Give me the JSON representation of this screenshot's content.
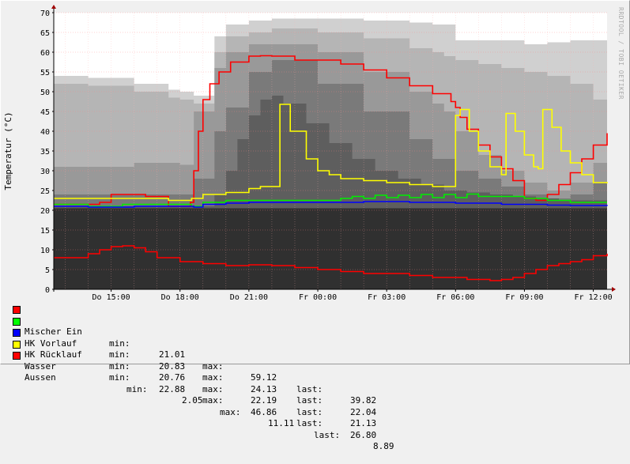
{
  "watermark": "RRDTOOL / TOBI OETIKER",
  "chart_data": {
    "type": "line",
    "ylabel": "Temperatur (°C)",
    "xlabel": "",
    "ylim": [
      0,
      70
    ],
    "yticks": [
      0,
      5,
      10,
      15,
      20,
      25,
      30,
      35,
      40,
      45,
      50,
      55,
      60,
      65,
      70
    ],
    "xlim": [
      12.5,
      36.6
    ],
    "xticks": [
      {
        "x": 15,
        "label": "Do 15:00"
      },
      {
        "x": 18,
        "label": "Do 18:00"
      },
      {
        "x": 21,
        "label": "Do 21:00"
      },
      {
        "x": 24,
        "label": "Fr 00:00"
      },
      {
        "x": 27,
        "label": "Fr 03:00"
      },
      {
        "x": 30,
        "label": "Fr 06:00"
      },
      {
        "x": 33,
        "label": "Fr 09:00"
      },
      {
        "x": 36,
        "label": "Fr 12:00"
      }
    ],
    "grid": true,
    "series": [
      {
        "name": "Mischer Ein",
        "color": "#ff0000",
        "x": [
          12.5,
          13.5,
          14.5,
          15.0,
          16.2,
          16.5,
          17.5,
          17.8,
          18.3,
          18.45,
          18.6,
          18.8,
          19.0,
          19.3,
          19.7,
          20.2,
          21.0,
          21.5,
          22.0,
          23.0,
          24.0,
          25.0,
          26.0,
          27.0,
          28.0,
          29.0,
          29.8,
          30.0,
          30.2,
          30.5,
          31.0,
          31.5,
          32.0,
          32.5,
          33.0,
          33.5,
          34.0,
          34.5,
          35.0,
          35.5,
          36.0,
          36.6
        ],
        "y": [
          21.5,
          21.5,
          22.0,
          24.0,
          24.0,
          23.5,
          21.0,
          21.0,
          21.0,
          22.0,
          30.0,
          40.0,
          48.0,
          52.0,
          55.0,
          57.5,
          59.0,
          59.1,
          59.0,
          58.0,
          58.0,
          57.0,
          55.5,
          53.5,
          51.5,
          49.5,
          47.5,
          46.0,
          43.5,
          40.5,
          36.5,
          33.5,
          30.5,
          27.5,
          23.0,
          22.5,
          24.0,
          26.5,
          29.5,
          33.0,
          36.5,
          39.5
        ]
      },
      {
        "name": "HK Vorlauf",
        "color": "#00ee00",
        "x": [
          12.5,
          14.0,
          15.5,
          17.0,
          18.5,
          19.0,
          20.0,
          21.0,
          22.0,
          23.0,
          24.0,
          25.0,
          25.5,
          26.0,
          26.5,
          27.0,
          27.5,
          28.0,
          28.5,
          29.0,
          29.5,
          30.0,
          30.5,
          31.0,
          32.0,
          33.0,
          34.0,
          35.0,
          36.6
        ],
        "y": [
          21.5,
          21.0,
          21.5,
          21.5,
          21.0,
          22.0,
          22.5,
          22.5,
          22.5,
          22.5,
          22.5,
          23.0,
          23.5,
          23.0,
          23.8,
          23.2,
          23.8,
          23.2,
          24.0,
          23.2,
          24.0,
          23.2,
          24.1,
          23.5,
          23.5,
          23.0,
          22.5,
          22.0,
          22.0
        ]
      },
      {
        "name": "HK Rücklauf",
        "color": "#0000ff",
        "x": [
          12.5,
          14.0,
          16.0,
          18.0,
          18.6,
          19.0,
          20.0,
          21.0,
          22.0,
          23.0,
          24.0,
          26.0,
          28.0,
          30.0,
          31.0,
          32.0,
          33.0,
          34.0,
          35.0,
          36.6
        ],
        "y": [
          21.0,
          20.8,
          21.0,
          21.0,
          20.8,
          21.5,
          21.8,
          22.0,
          22.0,
          22.0,
          22.0,
          22.2,
          22.0,
          21.8,
          21.8,
          21.5,
          21.5,
          21.3,
          21.2,
          21.1
        ]
      },
      {
        "name": "Wasser",
        "color": "#ffff00",
        "x": [
          12.5,
          15.0,
          17.5,
          18.5,
          19.0,
          20.0,
          21.0,
          21.5,
          22.0,
          22.3,
          22.35,
          22.8,
          23.5,
          24.0,
          24.5,
          25.0,
          26.0,
          27.0,
          28.0,
          29.0,
          29.9,
          30.0,
          30.2,
          30.6,
          31.0,
          31.5,
          32.0,
          32.1,
          32.2,
          32.6,
          33.0,
          33.4,
          33.6,
          33.7,
          33.8,
          34.2,
          34.6,
          35.0,
          35.5,
          36.0,
          36.6
        ],
        "y": [
          23.0,
          23.0,
          22.5,
          23.0,
          24.0,
          24.5,
          25.5,
          26.0,
          26.0,
          26.0,
          46.8,
          40.0,
          33.0,
          30.0,
          29.0,
          28.0,
          27.5,
          27.0,
          26.5,
          26.0,
          26.0,
          44.0,
          45.5,
          40.0,
          35.0,
          31.0,
          29.0,
          29.0,
          44.5,
          40.0,
          34.0,
          31.0,
          30.5,
          30.5,
          45.5,
          41.0,
          35.0,
          32.0,
          29.0,
          27.0,
          26.8
        ]
      },
      {
        "name": "Aussen",
        "color": "#ff0000",
        "x": [
          12.5,
          13.0,
          14.0,
          14.5,
          15.0,
          15.5,
          16.0,
          16.5,
          17.0,
          18.0,
          19.0,
          20.0,
          21.0,
          22.0,
          23.0,
          24.0,
          25.0,
          26.0,
          27.0,
          28.0,
          29.0,
          30.0,
          30.5,
          31.0,
          31.5,
          32.0,
          32.5,
          33.0,
          33.5,
          34.0,
          34.5,
          35.0,
          35.5,
          36.0,
          36.6
        ],
        "y": [
          8.0,
          8.0,
          9.0,
          10.0,
          10.8,
          11.0,
          10.5,
          9.5,
          8.0,
          7.0,
          6.5,
          6.0,
          6.2,
          6.0,
          5.5,
          5.0,
          4.5,
          4.0,
          4.0,
          3.5,
          3.0,
          3.0,
          2.5,
          2.5,
          2.2,
          2.5,
          3.0,
          4.0,
          5.0,
          6.0,
          6.5,
          7.0,
          7.5,
          8.5,
          9.0
        ]
      }
    ],
    "bands": [
      {
        "color": "#d0d0d0",
        "x": [
          12.5,
          14.0,
          16.0,
          17.5,
          18.0,
          18.6,
          19.5,
          20.0,
          21.0,
          22.0,
          24.0,
          26.0,
          28.0,
          29.0,
          29.5,
          30.0,
          31.0,
          32.0,
          33.0,
          34.0,
          35.0,
          36.0,
          36.6
        ],
        "y": [
          54.0,
          53.5,
          52.0,
          50.5,
          50.0,
          49.0,
          64.0,
          67.0,
          68.0,
          68.5,
          68.5,
          68.0,
          67.5,
          67.0,
          67.0,
          63.0,
          63.0,
          63.0,
          62.0,
          62.5,
          63.0,
          63.0,
          65.0
        ]
      },
      {
        "color": "#b5b5b5",
        "x": [
          12.5,
          14.0,
          16.0,
          17.5,
          18.0,
          18.6,
          19.5,
          20.0,
          21.0,
          22.0,
          24.0,
          26.0,
          28.0,
          29.0,
          29.5,
          30.0,
          31.0,
          32.0,
          33.0,
          34.0,
          35.0,
          36.0,
          36.6
        ],
        "y": [
          52.0,
          51.5,
          50.0,
          48.5,
          48.0,
          47.0,
          60.0,
          64.0,
          65.0,
          66.0,
          65.0,
          63.5,
          61.0,
          60.0,
          59.0,
          58.0,
          57.0,
          56.0,
          55.0,
          54.0,
          52.0,
          48.0,
          45.0
        ]
      },
      {
        "color": "#999999",
        "x": [
          12.5,
          14.0,
          16.0,
          17.5,
          18.0,
          18.6,
          19.5,
          20.0,
          21.0,
          22.0,
          24.0,
          26.0,
          28.0,
          29.0,
          29.5,
          30.0,
          31.0,
          32.0,
          33.0,
          34.0,
          35.0,
          36.0,
          36.6
        ],
        "y": [
          31.0,
          31.0,
          32.0,
          32.0,
          31.5,
          45.0,
          56.0,
          60.0,
          62.0,
          62.0,
          60.0,
          55.0,
          50.0,
          47.0,
          45.0,
          40.0,
          34.0,
          30.0,
          27.0,
          25.0,
          27.0,
          32.0,
          37.0
        ]
      },
      {
        "color": "#7a7a7a",
        "x": [
          12.5,
          16.0,
          18.0,
          18.6,
          19.5,
          20.0,
          21.0,
          22.0,
          24.0,
          26.0,
          28.0,
          29.0,
          30.0,
          31.0,
          32.0,
          33.0,
          34.0,
          35.0,
          36.0,
          36.6
        ],
        "y": [
          24.0,
          24.0,
          24.0,
          28.0,
          40.0,
          46.0,
          55.0,
          58.0,
          52.0,
          45.0,
          38.0,
          33.0,
          30.0,
          28.0,
          26.0,
          24.0,
          23.0,
          24.0,
          27.0,
          30.0
        ]
      },
      {
        "color": "#5e5e5e",
        "x": [
          12.5,
          18.5,
          19.5,
          20.0,
          20.5,
          21.0,
          21.5,
          22.0,
          22.5,
          23.5,
          24.5,
          25.5,
          26.5,
          27.5,
          28.5,
          29.5,
          30.5,
          31.5,
          32.5,
          33.5,
          34.5,
          35.5,
          36.6
        ],
        "y": [
          21.0,
          21.0,
          24.0,
          30.0,
          38.0,
          44.0,
          48.0,
          49.0,
          47.0,
          42.0,
          37.0,
          33.0,
          30.0,
          28.0,
          26.5,
          25.0,
          24.5,
          24.0,
          23.5,
          23.0,
          22.5,
          22.5,
          22.0
        ]
      },
      {
        "color": "#303030",
        "x": [
          12.5,
          36.6
        ],
        "y": [
          20.5,
          20.5
        ]
      }
    ]
  },
  "legend": [
    {
      "name": "Mischer Ein",
      "color": "#ff0000",
      "min_label": "min:",
      "min": "21.01",
      "max_label": "max:",
      "max": "59.12",
      "last_label": "last:",
      "last": "39.82",
      "offset": 0
    },
    {
      "name": "HK Vorlauf",
      "color": "#00ff00",
      "min_label": "min:",
      "min": "20.83",
      "max_label": "max:",
      "max": "24.13",
      "last_label": "last:",
      "last": "22.04",
      "offset": 0
    },
    {
      "name": "HK Rücklauf",
      "color": "#0000ff",
      "min_label": "min:",
      "min": "20.76",
      "max_label": "max:",
      "max": "22.19",
      "last_label": "last:",
      "last": "21.13",
      "offset": 0
    },
    {
      "name": "Wasser",
      "color": "#ffff00",
      "min_label": "min:",
      "min": "22.88",
      "max_label": "max:",
      "max": "46.86",
      "last_label": "last:",
      "last": "26.80",
      "offset": 0
    },
    {
      "name": "Aussen",
      "color": "#ff0000",
      "min_label": "min:",
      "min": "2.05",
      "max_label": "max:",
      "max": "11.11",
      "last_label": "last:",
      "last": "8.89",
      "offset": 1
    }
  ]
}
